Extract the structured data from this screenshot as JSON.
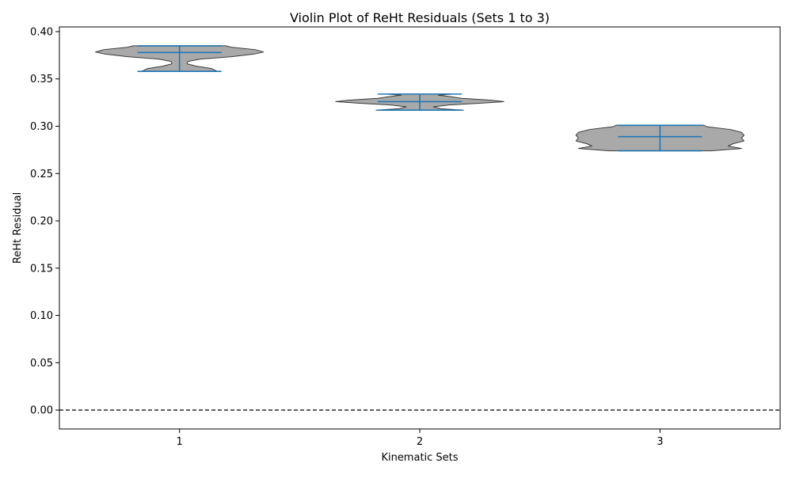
{
  "chart_data": {
    "type": "violin",
    "title": "Violin Plot of ReHt Residuals (Sets 1 to 3)",
    "xlabel": "Kinematic Sets",
    "ylabel": "ReHt Residual",
    "categories": [
      "1",
      "2",
      "3"
    ],
    "ylim": [
      -0.02,
      0.405
    ],
    "yticks": [
      0.0,
      0.05,
      0.1,
      0.15,
      0.2,
      0.25,
      0.3,
      0.35,
      0.4
    ],
    "ytick_labels": [
      "0.00",
      "0.05",
      "0.10",
      "0.15",
      "0.20",
      "0.25",
      "0.30",
      "0.35",
      "0.40"
    ],
    "reference_line": {
      "y": 0.0,
      "style": "dashed"
    },
    "violins": [
      {
        "category": "1",
        "min": 0.358,
        "max": 0.385,
        "mean": 0.378,
        "profile": [
          [
            0.358,
            0.45
          ],
          [
            0.361,
            0.38
          ],
          [
            0.3635,
            0.2
          ],
          [
            0.366,
            0.09
          ],
          [
            0.3685,
            0.1
          ],
          [
            0.371,
            0.25
          ],
          [
            0.3735,
            0.62
          ],
          [
            0.3765,
            0.9
          ],
          [
            0.3785,
            1.0
          ],
          [
            0.381,
            0.9
          ],
          [
            0.3835,
            0.62
          ],
          [
            0.385,
            0.55
          ]
        ]
      },
      {
        "category": "2",
        "min": 0.317,
        "max": 0.334,
        "mean": 0.326,
        "profile": [
          [
            0.317,
            0.52
          ],
          [
            0.3185,
            0.25
          ],
          [
            0.3205,
            0.16
          ],
          [
            0.3225,
            0.35
          ],
          [
            0.3245,
            0.75
          ],
          [
            0.326,
            1.0
          ],
          [
            0.3275,
            0.85
          ],
          [
            0.3295,
            0.5
          ],
          [
            0.3315,
            0.35
          ],
          [
            0.3328,
            0.22
          ],
          [
            0.334,
            0.4
          ]
        ]
      },
      {
        "category": "3",
        "min": 0.274,
        "max": 0.301,
        "mean": 0.289,
        "profile": [
          [
            0.274,
            0.6
          ],
          [
            0.2765,
            0.97
          ],
          [
            0.279,
            0.81
          ],
          [
            0.2815,
            0.87
          ],
          [
            0.2845,
            1.0
          ],
          [
            0.2875,
            0.97
          ],
          [
            0.2905,
            1.0
          ],
          [
            0.2935,
            0.97
          ],
          [
            0.2965,
            0.84
          ],
          [
            0.2995,
            0.56
          ],
          [
            0.301,
            0.52
          ]
        ]
      }
    ],
    "colors": {
      "violin_fill": "#a9a9a9",
      "violin_edge": "#3a3a3a",
      "stat_lines": "#1f77b4",
      "reference_line": "#000000"
    }
  }
}
